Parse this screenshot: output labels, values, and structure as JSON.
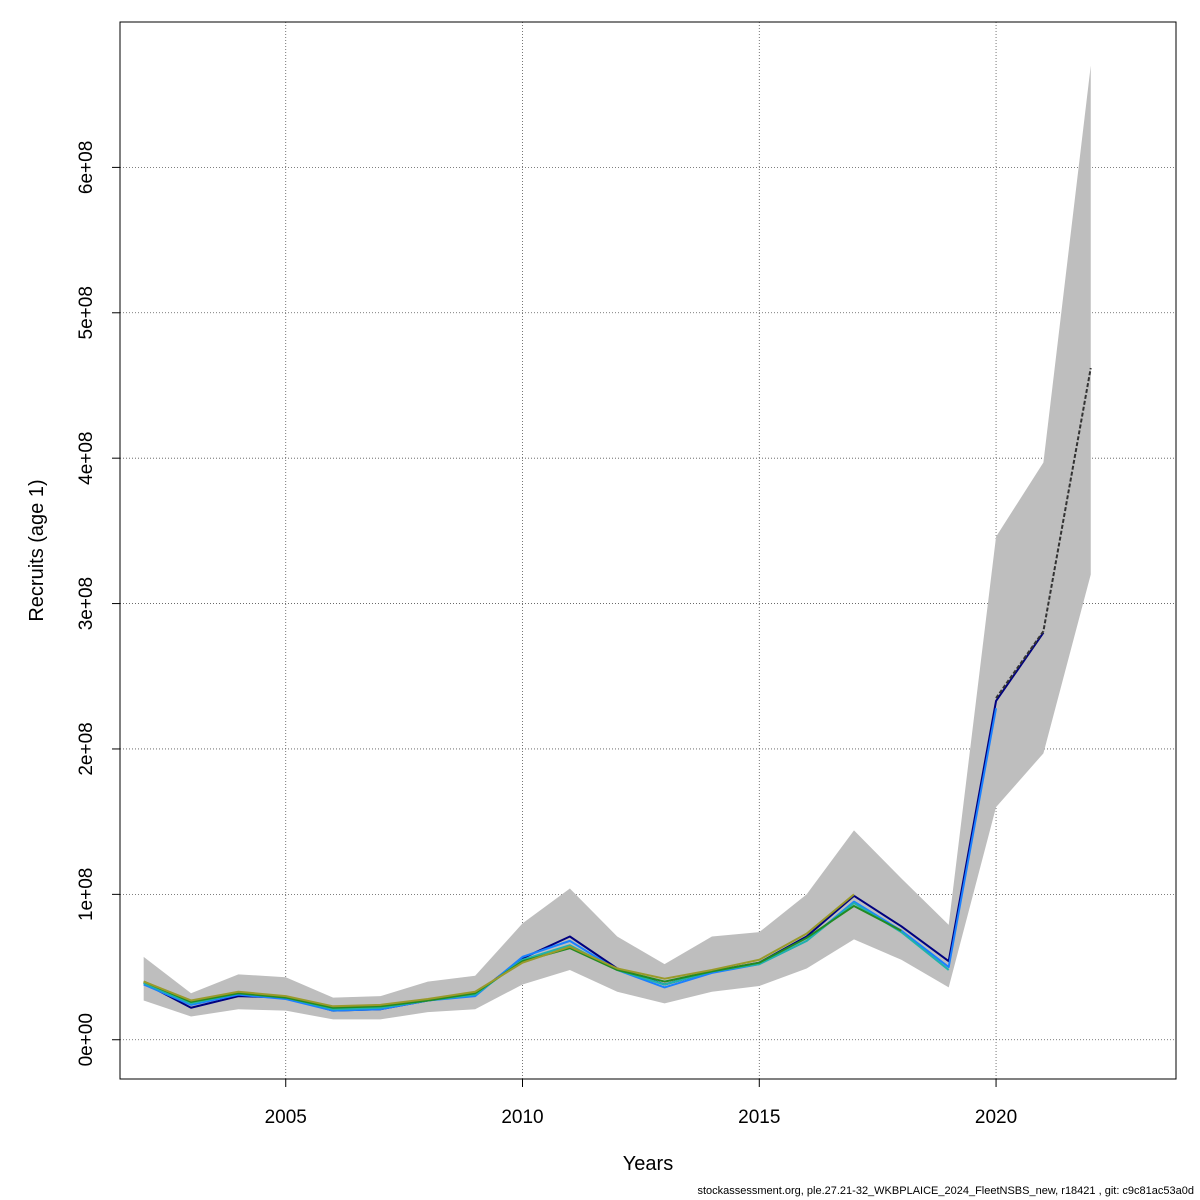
{
  "chart_data": {
    "type": "line",
    "xlabel": "Years",
    "ylabel": "Recruits (age 1)",
    "xlim": [
      2001.5,
      2023.8
    ],
    "ylim": [
      -27000000,
      700000000
    ],
    "x_ticks": [
      2005,
      2010,
      2015,
      2020
    ],
    "x_tick_labels": [
      "2005",
      "2010",
      "2015",
      "2020"
    ],
    "y_ticks": [
      0,
      100000000,
      200000000,
      300000000,
      400000000,
      500000000,
      600000000
    ],
    "y_tick_labels": [
      "0e+00",
      "1e+08",
      "2e+08",
      "3e+08",
      "4e+08",
      "5e+08",
      "6e+08"
    ],
    "grid": true,
    "band": {
      "x": [
        2002,
        2003,
        2004,
        2005,
        2006,
        2007,
        2008,
        2009,
        2010,
        2011,
        2012,
        2013,
        2014,
        2015,
        2016,
        2017,
        2018,
        2019,
        2020,
        2021,
        2022
      ],
      "upper": [
        57000000,
        32000000,
        45000000,
        43000000,
        29000000,
        30000000,
        40000000,
        44000000,
        80000000,
        104000000,
        71000000,
        52000000,
        71000000,
        74000000,
        100000000,
        144000000,
        111000000,
        79000000,
        346000000,
        397000000,
        670000000
      ],
      "lower": [
        27000000,
        16000000,
        21000000,
        20000000,
        14000000,
        14000000,
        19000000,
        21000000,
        38000000,
        48000000,
        33000000,
        25000000,
        33000000,
        37000000,
        49000000,
        69000000,
        55000000,
        36000000,
        160000000,
        197000000,
        320000000
      ],
      "color": "#bebebe"
    },
    "series": [
      {
        "color": "#000080",
        "dashed": false,
        "x": [
          2002,
          2003,
          2004,
          2005,
          2006,
          2007,
          2008,
          2009,
          2010,
          2011,
          2012,
          2013,
          2014,
          2015,
          2016,
          2017,
          2018,
          2019,
          2020,
          2021
        ],
        "values": [
          39000000,
          22000000,
          30000000,
          29000000,
          20000000,
          21000000,
          27000000,
          31000000,
          56000000,
          71000000,
          49000000,
          38000000,
          47000000,
          53000000,
          71000000,
          99000000,
          78000000,
          54000000,
          233000000,
          280000000
        ]
      },
      {
        "color": "#1a80ff",
        "dashed": false,
        "x": [
          2002,
          2003,
          2004,
          2005,
          2006,
          2007,
          2008,
          2009,
          2010,
          2011,
          2012,
          2013,
          2014,
          2015,
          2016,
          2017,
          2018,
          2019,
          2020
        ],
        "values": [
          38000000,
          24000000,
          31000000,
          28000000,
          20000000,
          21000000,
          27000000,
          30000000,
          57000000,
          68000000,
          48000000,
          36000000,
          46000000,
          52000000,
          68000000,
          95000000,
          75000000,
          50000000,
          228000000
        ]
      },
      {
        "color": "#20b2aa",
        "dashed": false,
        "x": [
          2002,
          2003,
          2004,
          2005,
          2006,
          2007,
          2008,
          2009,
          2010,
          2011,
          2012,
          2013,
          2014,
          2015,
          2016,
          2017,
          2018,
          2019
        ],
        "values": [
          39000000,
          25000000,
          32000000,
          29000000,
          21000000,
          22000000,
          27000000,
          31000000,
          55000000,
          65000000,
          48000000,
          38000000,
          47000000,
          52000000,
          68000000,
          94000000,
          74000000,
          48000000
        ]
      },
      {
        "color": "#228b22",
        "dashed": false,
        "x": [
          2002,
          2003,
          2004,
          2005,
          2006,
          2007,
          2008,
          2009,
          2010,
          2011,
          2012,
          2013,
          2014,
          2015,
          2016,
          2017,
          2018
        ],
        "values": [
          40000000,
          26000000,
          32000000,
          29000000,
          22000000,
          23000000,
          27000000,
          32000000,
          54000000,
          63000000,
          48000000,
          40000000,
          47000000,
          53000000,
          70000000,
          92000000,
          75000000
        ]
      },
      {
        "color": "#9a9a2a",
        "dashed": false,
        "x": [
          2002,
          2003,
          2004,
          2005,
          2006,
          2007,
          2008,
          2009,
          2010,
          2011,
          2012,
          2013,
          2014,
          2015,
          2016,
          2017
        ],
        "values": [
          40000000,
          27000000,
          33000000,
          30000000,
          23000000,
          24000000,
          28000000,
          33000000,
          53000000,
          64000000,
          49000000,
          42000000,
          48000000,
          55000000,
          73000000,
          100000000
        ]
      },
      {
        "color": "#333333",
        "dashed": true,
        "x": [
          2020,
          2021,
          2022
        ],
        "values": [
          235000000,
          281000000,
          462000000
        ]
      }
    ]
  },
  "footer": "stockassessment.org, ple.27.21-32_WKBPLAICE_2024_FleetNSBS_new, r18421 , git: c9c81ac53a0d"
}
